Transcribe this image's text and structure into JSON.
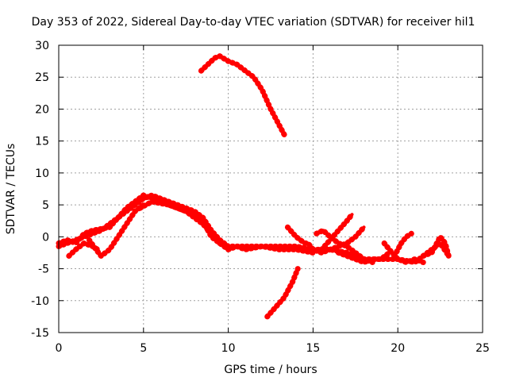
{
  "chart_data": {
    "type": "scatter",
    "title": "Day 353 of 2022, Sidereal Day-to-day VTEC variation (SDTVAR) for receiver hil1",
    "xlabel": "GPS time / hours",
    "ylabel": "SDTVAR / TECUs",
    "xlim": [
      0,
      25
    ],
    "ylim": [
      -15,
      30
    ],
    "xticks": [
      0,
      5,
      10,
      15,
      20,
      25
    ],
    "yticks": [
      -15,
      -10,
      -5,
      0,
      5,
      10,
      15,
      20,
      25,
      30
    ],
    "grid": true,
    "marker_color": "#ff0000",
    "series": [
      {
        "name": "arc-main-1",
        "points": [
          [
            0,
            -1
          ],
          [
            0.5,
            -0.5
          ],
          [
            1,
            -1
          ],
          [
            1.5,
            0.5
          ],
          [
            2,
            1
          ],
          [
            3,
            1.5
          ],
          [
            3.5,
            3
          ],
          [
            4,
            4
          ],
          [
            4.5,
            5
          ],
          [
            5,
            6
          ],
          [
            5.5,
            6.5
          ],
          [
            6,
            6
          ],
          [
            7,
            5
          ],
          [
            8,
            4
          ],
          [
            8.5,
            3
          ],
          [
            9,
            1
          ],
          [
            9.5,
            -0.5
          ],
          [
            10,
            -1.5
          ],
          [
            11,
            -1.5
          ],
          [
            12,
            -1.5
          ],
          [
            13,
            -1.5
          ],
          [
            14,
            -1.5
          ],
          [
            15,
            -2
          ],
          [
            16,
            -2
          ],
          [
            17,
            -2.5
          ],
          [
            18,
            -3.5
          ],
          [
            19,
            -3.5
          ],
          [
            20,
            -3.5
          ],
          [
            21,
            -4
          ],
          [
            22,
            -2
          ],
          [
            22.5,
            -1
          ],
          [
            23,
            -3
          ]
        ]
      },
      {
        "name": "arc-main-2",
        "points": [
          [
            0,
            -1.5
          ],
          [
            0.5,
            -1
          ],
          [
            1,
            -0.5
          ],
          [
            2,
            0.5
          ],
          [
            2.5,
            1
          ],
          [
            3,
            2
          ],
          [
            3.5,
            3
          ],
          [
            4,
            4.5
          ],
          [
            4.5,
            5.5
          ],
          [
            5,
            6.5
          ],
          [
            5.5,
            6
          ],
          [
            6,
            5.5
          ],
          [
            7,
            4.5
          ],
          [
            8,
            3.5
          ],
          [
            8.5,
            2.5
          ],
          [
            9,
            0
          ],
          [
            9.5,
            -1
          ],
          [
            10,
            -2
          ],
          [
            10.5,
            -1.5
          ],
          [
            11,
            -2
          ],
          [
            12,
            -1.5
          ],
          [
            13,
            -2
          ],
          [
            14,
            -2
          ],
          [
            15,
            -2.5
          ]
        ]
      },
      {
        "name": "arc-low-a",
        "points": [
          [
            0.6,
            -3
          ],
          [
            1,
            -2
          ],
          [
            1.5,
            -1
          ],
          [
            2,
            -1.5
          ],
          [
            2.3,
            -2
          ]
        ]
      },
      {
        "name": "arc-low-b",
        "points": [
          [
            1.8,
            -0.5
          ],
          [
            2.2,
            -2
          ],
          [
            2.5,
            -3
          ],
          [
            3,
            -2
          ],
          [
            3.5,
            0
          ],
          [
            4,
            2
          ],
          [
            4.5,
            4
          ],
          [
            5,
            5
          ]
        ]
      },
      {
        "name": "arc-mid-c",
        "points": [
          [
            4.8,
            4.5
          ],
          [
            5.5,
            5.5
          ],
          [
            6.5,
            5
          ],
          [
            7.5,
            4
          ],
          [
            8.5,
            2
          ],
          [
            9,
            0.5
          ],
          [
            9.5,
            -1
          ],
          [
            10,
            -1.5
          ]
        ]
      },
      {
        "name": "arc-high",
        "points": [
          [
            8.4,
            26
          ],
          [
            8.8,
            27
          ],
          [
            9.2,
            28
          ],
          [
            9.5,
            28.3
          ],
          [
            10,
            27.5
          ],
          [
            10.5,
            27
          ],
          [
            11,
            26
          ],
          [
            11.5,
            25
          ],
          [
            12,
            23
          ],
          [
            12.5,
            20
          ],
          [
            13,
            17.5
          ],
          [
            13.3,
            16
          ]
        ]
      },
      {
        "name": "arc-rise-d",
        "points": [
          [
            12.3,
            -12.5
          ],
          [
            12.8,
            -11
          ],
          [
            13.3,
            -9.5
          ],
          [
            13.8,
            -7
          ],
          [
            14.1,
            -5
          ]
        ]
      },
      {
        "name": "arc-loop-e",
        "points": [
          [
            13.5,
            1.5
          ],
          [
            14,
            0
          ],
          [
            14.5,
            -1
          ],
          [
            14.7,
            -1
          ],
          [
            15,
            -2
          ],
          [
            15.5,
            -2.5
          ],
          [
            16,
            -2
          ]
        ]
      },
      {
        "name": "arc-rise-f",
        "points": [
          [
            15.2,
            0.5
          ],
          [
            15.6,
            1
          ],
          [
            16,
            0
          ],
          [
            16.5,
            -1
          ],
          [
            17,
            -1.5
          ],
          [
            17.5,
            -2.5
          ],
          [
            18,
            -3.5
          ],
          [
            18.5,
            -4
          ]
        ]
      },
      {
        "name": "arc-rise-g",
        "points": [
          [
            15.5,
            -2
          ],
          [
            16,
            -0.5
          ],
          [
            16.5,
            1
          ],
          [
            17,
            2.5
          ],
          [
            17.3,
            3.5
          ]
        ]
      },
      {
        "name": "arc-rise-h",
        "points": [
          [
            16,
            -2
          ],
          [
            16.5,
            -1.5
          ],
          [
            17,
            -1
          ],
          [
            17.5,
            0
          ],
          [
            18,
            1.5
          ]
        ]
      },
      {
        "name": "arc-late-i",
        "points": [
          [
            16.5,
            -2.5
          ],
          [
            17,
            -3
          ],
          [
            17.5,
            -3.5
          ],
          [
            18,
            -4
          ],
          [
            18.5,
            -3.5
          ],
          [
            19,
            -3.5
          ],
          [
            19.5,
            -2.5
          ]
        ]
      },
      {
        "name": "arc-late-j",
        "points": [
          [
            19.2,
            -1
          ],
          [
            19.5,
            -2
          ],
          [
            20,
            -3.5
          ],
          [
            20.5,
            -4
          ],
          [
            21,
            -3.5
          ],
          [
            21.5,
            -4
          ]
        ]
      },
      {
        "name": "arc-late-k",
        "points": [
          [
            19.8,
            -3
          ],
          [
            20.2,
            -1
          ],
          [
            20.5,
            0
          ],
          [
            20.8,
            0.5
          ]
        ]
      },
      {
        "name": "arc-late-l",
        "points": [
          [
            21.5,
            -3
          ],
          [
            22,
            -2.5
          ],
          [
            22.3,
            -1
          ],
          [
            22.5,
            0
          ],
          [
            22.8,
            -1
          ],
          [
            23,
            -3
          ]
        ]
      }
    ]
  }
}
